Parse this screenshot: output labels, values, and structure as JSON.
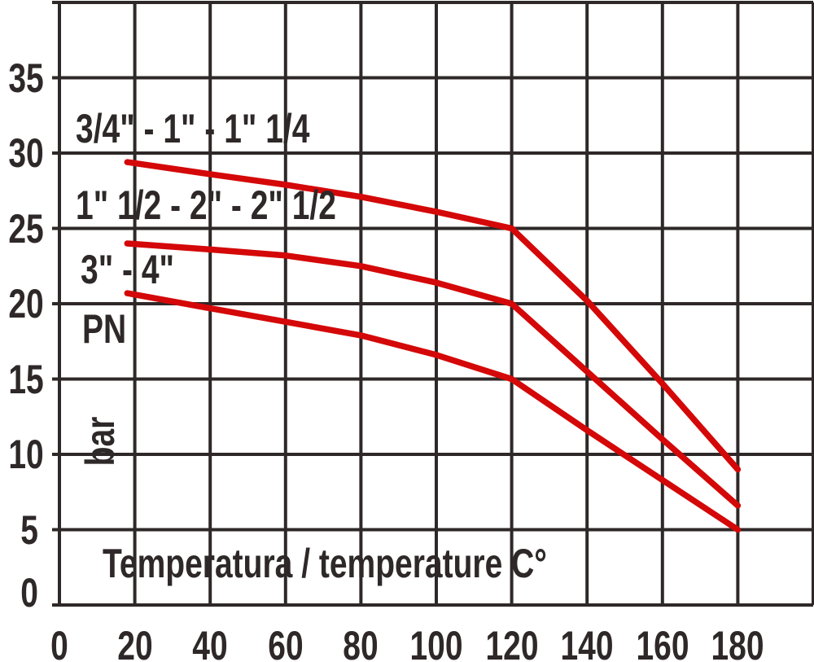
{
  "chart_data": {
    "type": "line",
    "title": "",
    "xlabel": "Temperatura / temperature C°",
    "ylabel_unit_top": "PN",
    "ylabel_unit_side": "bar",
    "xlim": [
      0,
      200
    ],
    "ylim": [
      0,
      40
    ],
    "x_grid_step": 20,
    "y_grid_step": 5,
    "x_ticks": [
      0,
      20,
      40,
      60,
      80,
      100,
      120,
      140,
      160,
      180
    ],
    "y_ticks": [
      0,
      5,
      10,
      15,
      20,
      25,
      30,
      35
    ],
    "grid": true,
    "legend_position": "labels-inside-plot",
    "colors": {
      "background": "#ffffff",
      "grid": "#2e2828",
      "text": "#2e2828",
      "curve": "#d40808"
    },
    "x": [
      18,
      40,
      60,
      80,
      100,
      120,
      140,
      160,
      180
    ],
    "series": [
      {
        "name": "3/4\" - 1\" - 1\" 1/4",
        "y": [
          29.4,
          28.6,
          27.9,
          27.1,
          26.1,
          25,
          20.2,
          14.7,
          9
        ]
      },
      {
        "name": "1\" 1/2 - 2\" - 2\" 1/2",
        "y": [
          24,
          23.6,
          23.2,
          22.5,
          21.4,
          20,
          15.5,
          11,
          6.6
        ]
      },
      {
        "name": "3\" - 4\"",
        "y": [
          20.7,
          19.7,
          18.8,
          17.9,
          16.6,
          15,
          11.6,
          8.3,
          5
        ]
      }
    ]
  }
}
